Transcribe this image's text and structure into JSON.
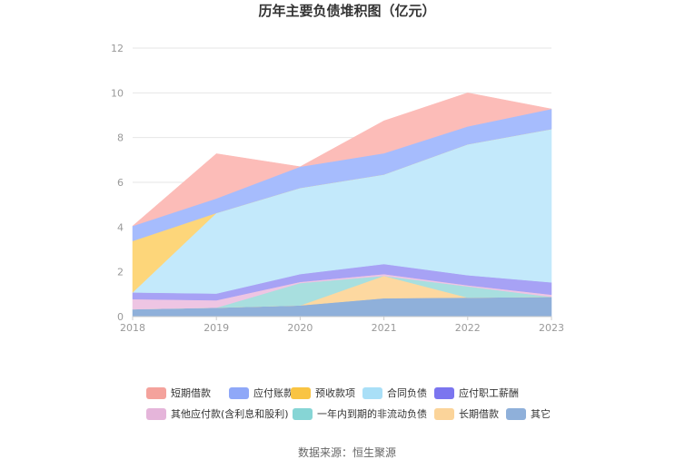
{
  "source_note": "数据来源：恒生聚源",
  "chart_data": {
    "type": "area",
    "stacked": true,
    "title": "历年主要负债堆积图（亿元）",
    "x": [
      "2018",
      "2019",
      "2020",
      "2021",
      "2022",
      "2023"
    ],
    "y_ticks": [
      "0",
      "2",
      "4",
      "6",
      "8",
      "10",
      "12"
    ],
    "ylim": [
      0,
      12
    ],
    "grid": true,
    "legend_position": "bottom",
    "series": [
      {
        "name": "其它",
        "color": "#8fb0da",
        "values": [
          0.33,
          0.4,
          0.5,
          0.82,
          0.85,
          0.88
        ]
      },
      {
        "name": "长期借款",
        "color": "#fdd8a0",
        "values": [
          0.0,
          0.0,
          0.0,
          1.0,
          0.0,
          0.0
        ]
      },
      {
        "name": "一年内到期的非流动负债",
        "color": "#a8dfdf",
        "values": [
          0.0,
          0.0,
          1.0,
          0.0,
          0.5,
          0.0
        ]
      },
      {
        "name": "其他应付款(含利息和股利)",
        "color": "#eec5e3",
        "values": [
          0.45,
          0.33,
          0.05,
          0.08,
          0.05,
          0.1
        ]
      },
      {
        "name": "应付职工薪酬",
        "color": "#a7a2f5",
        "values": [
          0.3,
          0.3,
          0.35,
          0.45,
          0.45,
          0.55
        ]
      },
      {
        "name": "合同负债",
        "color": "#c3e9fb",
        "values": [
          0.0,
          3.6,
          3.85,
          4.0,
          5.85,
          6.85
        ]
      },
      {
        "name": "预收款项",
        "color": "#fdd67a",
        "values": [
          2.3,
          0.0,
          0.0,
          0.0,
          0.0,
          0.0
        ]
      },
      {
        "name": "应付账款",
        "color": "#a6bcfd",
        "values": [
          0.67,
          0.65,
          0.95,
          0.95,
          0.8,
          0.9
        ]
      },
      {
        "name": "短期借款",
        "color": "#fcbcb8",
        "values": [
          0.0,
          2.0,
          0.0,
          1.45,
          1.5,
          0.0
        ]
      }
    ],
    "legend": [
      {
        "name": "短期借款",
        "color": "#f4a29c"
      },
      {
        "name": "应付账款",
        "color": "#8fa8f8"
      },
      {
        "name": "预收款项",
        "color": "#f9c443"
      },
      {
        "name": "合同负债",
        "color": "#a9dff7"
      },
      {
        "name": "应付职工薪酬",
        "color": "#7b75ef"
      },
      {
        "name": "其他应付款(含利息和股利)",
        "color": "#e5b5da"
      },
      {
        "name": "一年内到期的非流动负债",
        "color": "#86d5d5"
      },
      {
        "name": "长期借款",
        "color": "#fbd49a"
      },
      {
        "name": "其它",
        "color": "#8fb0da"
      }
    ]
  }
}
